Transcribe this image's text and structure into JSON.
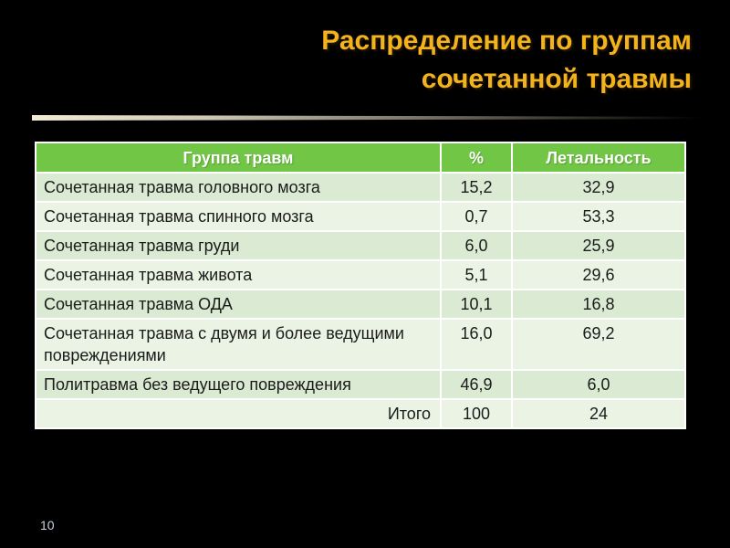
{
  "slide": {
    "title": {
      "line1": "Распределение по группам",
      "line2": "сочетанной травмы"
    },
    "page_number": "10"
  },
  "table": {
    "headers": [
      "Группа травм",
      "%",
      "Летальность"
    ],
    "rows": [
      {
        "group": "Сочетанная травма головного мозга",
        "percent": "15,2",
        "lethality": "32,9",
        "total": false
      },
      {
        "group": "Сочетанная травма спинного мозга",
        "percent": "0,7",
        "lethality": "53,3",
        "total": false
      },
      {
        "group": "Сочетанная травма груди",
        "percent": "6,0",
        "lethality": "25,9",
        "total": false
      },
      {
        "group": "Сочетанная травма живота",
        "percent": "5,1",
        "lethality": "29,6",
        "total": false
      },
      {
        "group": "Сочетанная травма ОДА",
        "percent": "10,1",
        "lethality": "16,8",
        "total": false
      },
      {
        "group": "Сочетанная травма с двумя и более ведущими повреждениями",
        "percent": "16,0",
        "lethality": "69,2",
        "total": false
      },
      {
        "group": "Политравма без ведущего повреждения",
        "percent": "46,9",
        "lethality": "6,0",
        "total": false
      },
      {
        "group": "Итого",
        "percent": "100",
        "lethality": "24",
        "total": true
      }
    ]
  },
  "colors": {
    "background": "#000000",
    "title_text": "#F2B31C",
    "header_bg": "#72C646",
    "header_text": "#FFFFFF",
    "row_odd_bg": "#DBEAD2",
    "row_even_bg": "#EBF4E4",
    "cell_text": "#1B1B1B",
    "divider_light": "#F2ECD6"
  }
}
